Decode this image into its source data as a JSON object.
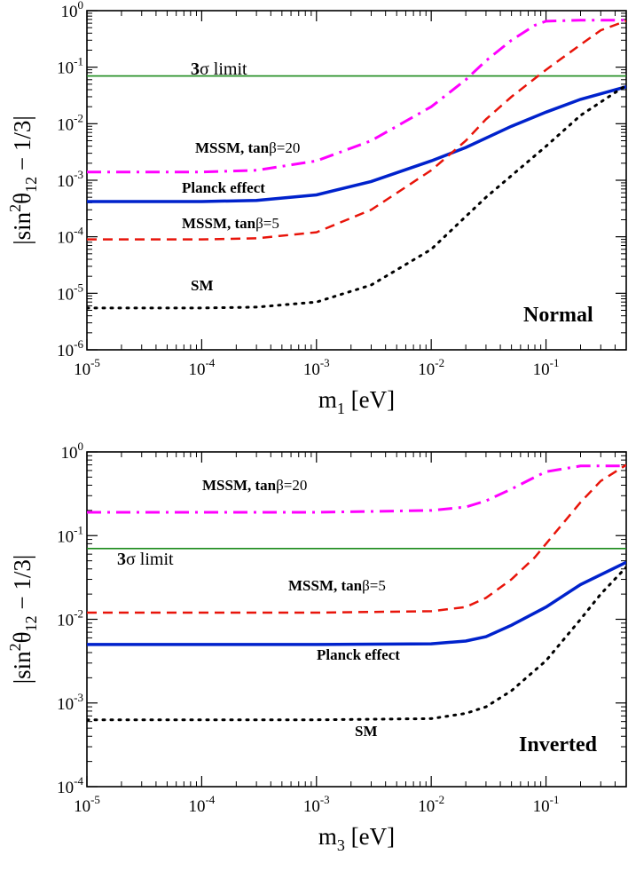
{
  "chart_data": [
    {
      "type": "line",
      "panel_label": "Normal",
      "xlabel_main": "m",
      "xlabel_sub": "1",
      "xlabel_unit": " [eV]",
      "ylabel_pre": "|sin",
      "ylabel_sup": "2",
      "ylabel_theta": "θ",
      "ylabel_sub": "12",
      "ylabel_post": " − 1/3|",
      "xscale": "log",
      "yscale": "log",
      "xlim": [
        1e-05,
        0.5
      ],
      "ylim": [
        1e-06,
        1
      ],
      "x_ticks": [
        {
          "base": "10",
          "exp": "-5",
          "v": 1e-05
        },
        {
          "base": "10",
          "exp": "-4",
          "v": 0.0001
        },
        {
          "base": "10",
          "exp": "-3",
          "v": 0.001
        },
        {
          "base": "10",
          "exp": "-2",
          "v": 0.01
        },
        {
          "base": "10",
          "exp": "-1",
          "v": 0.1
        }
      ],
      "y_ticks": [
        {
          "base": "10",
          "exp": "0",
          "v": 1
        },
        {
          "base": "10",
          "exp": "-1",
          "v": 0.1
        },
        {
          "base": "10",
          "exp": "-2",
          "v": 0.01
        },
        {
          "base": "10",
          "exp": "-3",
          "v": 0.001
        },
        {
          "base": "10",
          "exp": "-4",
          "v": 0.0001
        },
        {
          "base": "10",
          "exp": "-5",
          "v": 1e-05
        },
        {
          "base": "10",
          "exp": "-6",
          "v": 1e-06
        }
      ],
      "hline": {
        "value": 0.07,
        "color": "#1a8a1a",
        "label_bold": "3",
        "label_sigma": "σ",
        "label_rest": " limit"
      },
      "series": [
        {
          "name": "MSSM, tanβ=20",
          "label_pre": "MSSM, tan",
          "label_beta": "β",
          "label_post": "=20",
          "color": "#ff00ff",
          "dash": "dashdot",
          "width": 3,
          "points": [
            [
              1e-05,
              0.0014
            ],
            [
              0.0001,
              0.0014
            ],
            [
              0.0003,
              0.0015
            ],
            [
              0.001,
              0.0022
            ],
            [
              0.003,
              0.005
            ],
            [
              0.01,
              0.02
            ],
            [
              0.02,
              0.06
            ],
            [
              0.03,
              0.13
            ],
            [
              0.05,
              0.3
            ],
            [
              0.08,
              0.55
            ],
            [
              0.1,
              0.65
            ],
            [
              0.2,
              0.68
            ],
            [
              0.5,
              0.68
            ]
          ]
        },
        {
          "name": "Planck effect",
          "label": "Planck effect",
          "color": "#0022cc",
          "dash": "solid",
          "width": 3.5,
          "points": [
            [
              1e-05,
              0.00042
            ],
            [
              0.0001,
              0.00042
            ],
            [
              0.0003,
              0.00044
            ],
            [
              0.001,
              0.00055
            ],
            [
              0.003,
              0.00095
            ],
            [
              0.01,
              0.0022
            ],
            [
              0.02,
              0.0038
            ],
            [
              0.05,
              0.009
            ],
            [
              0.1,
              0.016
            ],
            [
              0.2,
              0.027
            ],
            [
              0.5,
              0.045
            ]
          ]
        },
        {
          "name": "MSSM, tanβ=5",
          "label_pre": "MSSM, tan",
          "label_beta": "β",
          "label_post": "=5",
          "color": "#e8140a",
          "dash": "dashed",
          "width": 2.5,
          "points": [
            [
              1e-05,
              9e-05
            ],
            [
              0.0001,
              9e-05
            ],
            [
              0.0003,
              9.4e-05
            ],
            [
              0.001,
              0.00012
            ],
            [
              0.003,
              0.0003
            ],
            [
              0.01,
              0.0015
            ],
            [
              0.02,
              0.005
            ],
            [
              0.03,
              0.012
            ],
            [
              0.05,
              0.03
            ],
            [
              0.1,
              0.09
            ],
            [
              0.2,
              0.25
            ],
            [
              0.3,
              0.45
            ],
            [
              0.5,
              0.66
            ]
          ]
        },
        {
          "name": "SM",
          "label": "SM",
          "color": "#000000",
          "dash": "dotted",
          "width": 3,
          "points": [
            [
              1e-05,
              5.5e-06
            ],
            [
              0.0001,
              5.5e-06
            ],
            [
              0.0003,
              5.7e-06
            ],
            [
              0.001,
              7e-06
            ],
            [
              0.003,
              1.4e-05
            ],
            [
              0.01,
              6e-05
            ],
            [
              0.03,
              0.0005
            ],
            [
              0.1,
              0.004
            ],
            [
              0.2,
              0.014
            ],
            [
              0.5,
              0.048
            ]
          ]
        }
      ]
    },
    {
      "type": "line",
      "panel_label": "Inverted",
      "xlabel_main": "m",
      "xlabel_sub": "3",
      "xlabel_unit": " [eV]",
      "ylabel_pre": "|sin",
      "ylabel_sup": "2",
      "ylabel_theta": "θ",
      "ylabel_sub": "12",
      "ylabel_post": " − 1/3|",
      "xscale": "log",
      "yscale": "log",
      "xlim": [
        1e-05,
        0.5
      ],
      "ylim": [
        0.0001,
        1
      ],
      "x_ticks": [
        {
          "base": "10",
          "exp": "-5",
          "v": 1e-05
        },
        {
          "base": "10",
          "exp": "-4",
          "v": 0.0001
        },
        {
          "base": "10",
          "exp": "-3",
          "v": 0.001
        },
        {
          "base": "10",
          "exp": "-2",
          "v": 0.01
        },
        {
          "base": "10",
          "exp": "-1",
          "v": 0.1
        }
      ],
      "y_ticks": [
        {
          "base": "10",
          "exp": "0",
          "v": 1
        },
        {
          "base": "10",
          "exp": "-1",
          "v": 0.1
        },
        {
          "base": "10",
          "exp": "-2",
          "v": 0.01
        },
        {
          "base": "10",
          "exp": "-3",
          "v": 0.001
        },
        {
          "base": "10",
          "exp": "-4",
          "v": 0.0001
        }
      ],
      "hline": {
        "value": 0.07,
        "color": "#1a8a1a",
        "label_bold": "3",
        "label_sigma": "σ",
        "label_rest": " limit"
      },
      "series": [
        {
          "name": "MSSM, tanβ=20",
          "label_pre": "MSSM, tan",
          "label_beta": "β",
          "label_post": "=20",
          "color": "#ff00ff",
          "dash": "dashdot",
          "width": 3,
          "points": [
            [
              1e-05,
              0.19
            ],
            [
              0.001,
              0.19
            ],
            [
              0.01,
              0.2
            ],
            [
              0.02,
              0.22
            ],
            [
              0.03,
              0.26
            ],
            [
              0.05,
              0.36
            ],
            [
              0.08,
              0.5
            ],
            [
              0.1,
              0.58
            ],
            [
              0.2,
              0.68
            ],
            [
              0.5,
              0.68
            ]
          ]
        },
        {
          "name": "MSSM, tanβ=5",
          "label_pre": "MSSM, tan",
          "label_beta": "β",
          "label_post": "=5",
          "color": "#e8140a",
          "dash": "dashed",
          "width": 2.5,
          "points": [
            [
              1e-05,
              0.012
            ],
            [
              0.001,
              0.012
            ],
            [
              0.01,
              0.0125
            ],
            [
              0.02,
              0.014
            ],
            [
              0.03,
              0.018
            ],
            [
              0.05,
              0.03
            ],
            [
              0.08,
              0.055
            ],
            [
              0.1,
              0.08
            ],
            [
              0.2,
              0.25
            ],
            [
              0.3,
              0.45
            ],
            [
              0.5,
              0.7
            ]
          ]
        },
        {
          "name": "Planck effect",
          "label": "Planck effect",
          "color": "#0022cc",
          "dash": "solid",
          "width": 3.5,
          "points": [
            [
              1e-05,
              0.005
            ],
            [
              0.001,
              0.005
            ],
            [
              0.01,
              0.0051
            ],
            [
              0.02,
              0.0055
            ],
            [
              0.03,
              0.0062
            ],
            [
              0.05,
              0.0085
            ],
            [
              0.1,
              0.014
            ],
            [
              0.2,
              0.026
            ],
            [
              0.5,
              0.048
            ]
          ]
        },
        {
          "name": "SM",
          "label": "SM",
          "color": "#000000",
          "dash": "dotted",
          "width": 3,
          "points": [
            [
              1e-05,
              0.00063
            ],
            [
              0.001,
              0.00063
            ],
            [
              0.01,
              0.00065
            ],
            [
              0.02,
              0.00075
            ],
            [
              0.03,
              0.0009
            ],
            [
              0.05,
              0.0014
            ],
            [
              0.1,
              0.0032
            ],
            [
              0.2,
              0.01
            ],
            [
              0.3,
              0.02
            ],
            [
              0.5,
              0.042
            ]
          ]
        }
      ]
    }
  ]
}
